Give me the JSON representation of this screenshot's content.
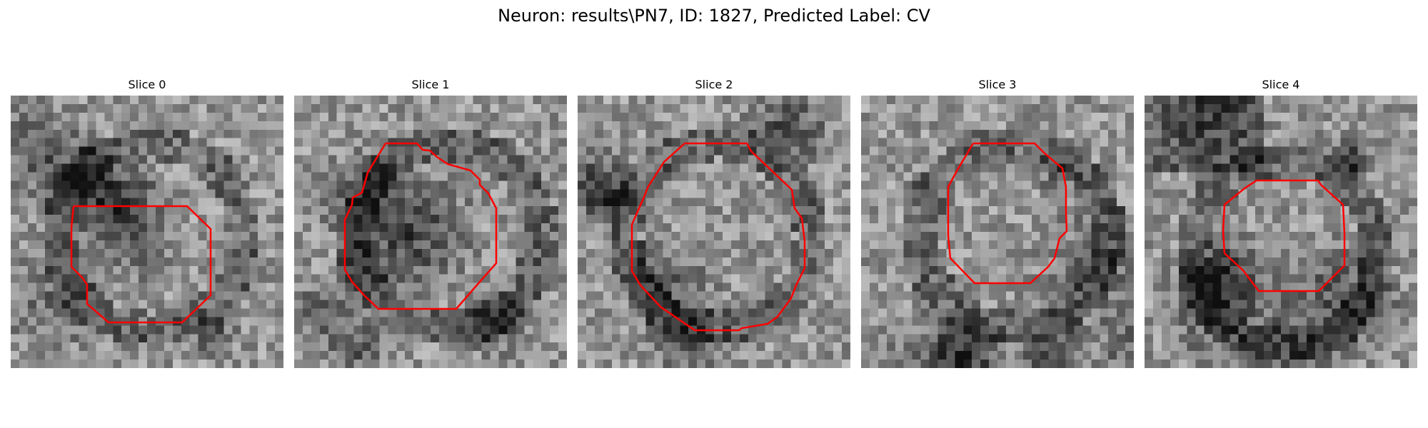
{
  "figure": {
    "suptitle": "Neuron: results\\PN7, ID: 1827, Predicted Label: CV"
  },
  "panels": [
    {
      "title": "Slice 0",
      "contour_color": "#ff0000",
      "image": "grayscale-em-crop",
      "seed": 11
    },
    {
      "title": "Slice 1",
      "contour_color": "#ff0000",
      "image": "grayscale-em-crop",
      "seed": 23
    },
    {
      "title": "Slice 2",
      "contour_color": "#ff0000",
      "image": "grayscale-em-crop",
      "seed": 37
    },
    {
      "title": "Slice 3",
      "contour_color": "#ff0000",
      "image": "grayscale-em-crop",
      "seed": 41
    },
    {
      "title": "Slice 4",
      "contour_color": "#ff0000",
      "image": "grayscale-em-crop",
      "seed": 59
    }
  ]
}
